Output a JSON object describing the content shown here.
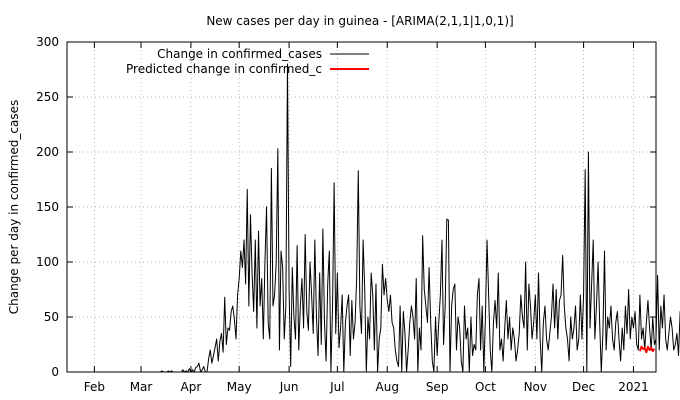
{
  "chart_data": {
    "type": "line",
    "title": "New cases per day in guinea -  [ARIMA(2,1,1|1,0,1)]",
    "xlabel": "",
    "ylabel": "Change per day in confirmed_cases",
    "ylim": [
      0,
      300
    ],
    "xlim": [
      "2020-01-15",
      "2021-01-15"
    ],
    "yticks": [
      0,
      50,
      100,
      150,
      200,
      250,
      300
    ],
    "xticks": [
      {
        "date": "2020-02-01",
        "label": "Feb"
      },
      {
        "date": "2020-03-01",
        "label": "Mar"
      },
      {
        "date": "2020-04-01",
        "label": "Apr"
      },
      {
        "date": "2020-05-01",
        "label": "May"
      },
      {
        "date": "2020-06-01",
        "label": "Jun"
      },
      {
        "date": "2020-07-01",
        "label": "Jul"
      },
      {
        "date": "2020-08-01",
        "label": "Aug"
      },
      {
        "date": "2020-09-01",
        "label": "Sep"
      },
      {
        "date": "2020-10-01",
        "label": "Oct"
      },
      {
        "date": "2020-11-01",
        "label": "Nov"
      },
      {
        "date": "2020-12-01",
        "label": "Dec"
      },
      {
        "date": "2021-01-01",
        "label": "2021"
      }
    ],
    "grid": true,
    "legend_position": "top-left",
    "series": [
      {
        "name": "Change in confirmed_cases",
        "color": "#000000",
        "start_date": "2020-01-22",
        "values": [
          0,
          0,
          0,
          0,
          0,
          0,
          0,
          0,
          0,
          0,
          0,
          0,
          0,
          0,
          0,
          0,
          0,
          0,
          0,
          0,
          0,
          0,
          0,
          0,
          0,
          0,
          0,
          0,
          0,
          0,
          0,
          0,
          0,
          0,
          0,
          0,
          0,
          0,
          0,
          0,
          0,
          0,
          0,
          0,
          0,
          0,
          0,
          0,
          0,
          0,
          0,
          0,
          1,
          0,
          0,
          0,
          1,
          0,
          1,
          0,
          0,
          0,
          0,
          0,
          0,
          2,
          0,
          1,
          0,
          3,
          0,
          2,
          0,
          4,
          5,
          8,
          0,
          2,
          5,
          0,
          0,
          12,
          20,
          8,
          15,
          22,
          30,
          10,
          28,
          35,
          18,
          68,
          25,
          40,
          38,
          55,
          60,
          48,
          30,
          70,
          85,
          110,
          95,
          120,
          80,
          166,
          60,
          143,
          90,
          55,
          120,
          40,
          128,
          60,
          85,
          30,
          100,
          150,
          45,
          30,
          185,
          60,
          70,
          100,
          203,
          20,
          110,
          95,
          30,
          60,
          280,
          75,
          5,
          95,
          50,
          30,
          115,
          20,
          60,
          85,
          40,
          125,
          55,
          38,
          100,
          70,
          35,
          120,
          50,
          15,
          90,
          25,
          130,
          45,
          10,
          80,
          110,
          0,
          60,
          172,
          35,
          90,
          22,
          40,
          70,
          0,
          45,
          60,
          70,
          15,
          65,
          30,
          45,
          85,
          183,
          60,
          35,
          120,
          75,
          0,
          50,
          30,
          90,
          70,
          20,
          80,
          0,
          30,
          40,
          98,
          70,
          85,
          65,
          55,
          70,
          45,
          40,
          20,
          10,
          5,
          60,
          0,
          55,
          35,
          0,
          20,
          45,
          60,
          50,
          30,
          85,
          0,
          40,
          20,
          124,
          75,
          60,
          45,
          95,
          45,
          10,
          0,
          50,
          15,
          45,
          70,
          120,
          25,
          60,
          139,
          138,
          0,
          60,
          75,
          80,
          20,
          50,
          40,
          10,
          0,
          60,
          30,
          40,
          0,
          50,
          15,
          25,
          20,
          70,
          85,
          20,
          60,
          0,
          50,
          120,
          70,
          20,
          0,
          45,
          65,
          40,
          90,
          20,
          30,
          10,
          40,
          65,
          30,
          50,
          20,
          40,
          30,
          10,
          20,
          35,
          70,
          50,
          40,
          100,
          20,
          80,
          60,
          30,
          45,
          70,
          30,
          90,
          30,
          0,
          45,
          60,
          30,
          20,
          35,
          50,
          80,
          40,
          75,
          30,
          65,
          70,
          106,
          60,
          40,
          30,
          10,
          50,
          30,
          40,
          60,
          20,
          30,
          70,
          30,
          70,
          184,
          0,
          200,
          40,
          80,
          120,
          30,
          60,
          100,
          45,
          0,
          35,
          110,
          20,
          50,
          40,
          60,
          30,
          20,
          45,
          55,
          30,
          10,
          40,
          20,
          60,
          35,
          75,
          30,
          50,
          40,
          55,
          25,
          20,
          70,
          30,
          40,
          20,
          45,
          65,
          40,
          20,
          50,
          25,
          30,
          88,
          20,
          60,
          40,
          70,
          30,
          20,
          35,
          50,
          40,
          20,
          25,
          35,
          15,
          55,
          30,
          45,
          40,
          25,
          45,
          15,
          30,
          55,
          20,
          40,
          25,
          15,
          30,
          10,
          35,
          25,
          20,
          30,
          45,
          10,
          15,
          25,
          35,
          20,
          45,
          25,
          10,
          30,
          20,
          45
        ]
      },
      {
        "name": "Predicted change in confirmed_c",
        "color": "#ff0000",
        "start_date": "2021-01-05",
        "values": [
          19,
          23,
          21,
          22,
          18,
          23,
          20,
          22,
          19,
          21
        ]
      }
    ]
  }
}
